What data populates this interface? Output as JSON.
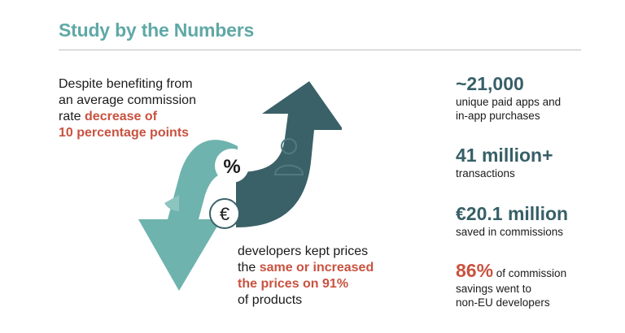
{
  "title": "Study by the Numbers",
  "left_text": {
    "line1": "Despite benefiting from",
    "line2": "an average commission",
    "line3_plain": "rate ",
    "line3_highlight": "decrease of",
    "line4_highlight": "10 percentage points"
  },
  "bottom_text": {
    "line1": "developers kept prices",
    "line2_plain": "the ",
    "line2_highlight": "same or increased",
    "line3_highlight": "the prices on 91%",
    "line4": "of products"
  },
  "icons": {
    "percent_symbol": "%",
    "euro_symbol": "€"
  },
  "stats": [
    {
      "value": "~21,000",
      "desc_line1": "unique paid apps and",
      "desc_line2": "in-app purchases"
    },
    {
      "value": "41 million+",
      "desc_line1": "transactions"
    },
    {
      "value": "€20.1 million",
      "desc_line1": "saved in commissions"
    },
    {
      "value": "86%",
      "inline_desc": " of commission",
      "desc_line1": "savings went to",
      "desc_line2": "non-EU developers"
    }
  ],
  "colors": {
    "title": "#5fa8a6",
    "highlight": "#c9523f",
    "stat_value": "#375f67",
    "arrow_light": "#6eb3ad",
    "arrow_dark": "#3a6167"
  }
}
